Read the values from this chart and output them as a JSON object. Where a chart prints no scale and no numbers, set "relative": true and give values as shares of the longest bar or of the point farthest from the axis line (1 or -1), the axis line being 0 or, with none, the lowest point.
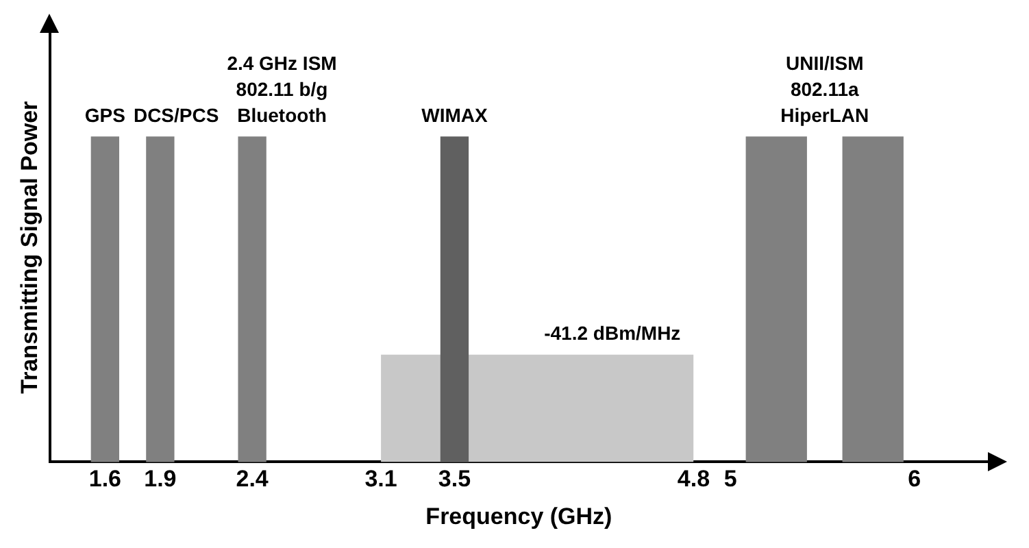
{
  "chart_data": {
    "type": "bar",
    "relative": true,
    "xlabel": "Frequency (GHz)",
    "ylabel": "Transmitting Signal Power",
    "xlim": [
      1.3,
      6.4
    ],
    "xticks": [
      1.6,
      1.9,
      2.4,
      3.1,
      3.5,
      4.8,
      5,
      6
    ],
    "grid": false,
    "legend": false,
    "series": [
      {
        "type": "area",
        "name": "-41.2 dBm/MHz",
        "color": "#c8c8c8",
        "x": [
          3.1,
          4.8
        ],
        "values": [
          0.33,
          0.33
        ]
      },
      {
        "name": "GPS",
        "color": "#808080",
        "x": [
          1.6
        ],
        "values": [
          1
        ]
      },
      {
        "name": "DCS/PCS",
        "color": "#808080",
        "x": [
          1.9
        ],
        "values": [
          1
        ]
      },
      {
        "name": "2.4 GHz ISM\n802.11 b/g\nBluetooth",
        "color": "#808080",
        "x": [
          2.4
        ],
        "values": [
          1
        ]
      },
      {
        "name": "WIMAX",
        "color": "#606060",
        "x": [
          3.5
        ],
        "values": [
          1
        ]
      },
      {
        "name": "UNII/ISM\n802.11a\nHiperLAN",
        "color": "#808080",
        "x": [
          5.25,
          5.775
        ],
        "values": [
          1,
          1
        ]
      }
    ]
  }
}
